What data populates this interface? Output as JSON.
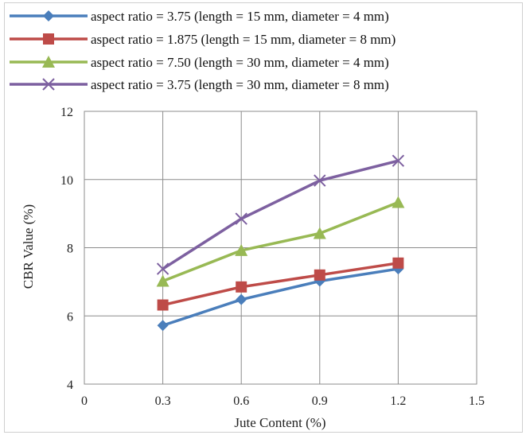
{
  "chart_data": {
    "type": "line",
    "xlabel": "Jute Content (%)",
    "ylabel": "CBR Value (%)",
    "xlim": [
      0,
      1.5
    ],
    "ylim": [
      4,
      12
    ],
    "xticks": [
      "0",
      "0.3",
      "0.6",
      "0.9",
      "1.2",
      "1.5"
    ],
    "yticks": [
      "4",
      "6",
      "8",
      "10",
      "12"
    ],
    "grid": true,
    "legend_position": "top",
    "x": [
      0.3,
      0.6,
      0.9,
      1.2
    ],
    "series": [
      {
        "name": "aspect ratio = 3.75 (length = 15 mm, diameter = 4 mm)",
        "values": [
          5.72,
          6.48,
          7.02,
          7.38
        ],
        "color": "#4a7ebb",
        "marker": "diamond"
      },
      {
        "name": "aspect ratio = 1.875 (length = 15 mm, diameter = 8 mm)",
        "values": [
          6.32,
          6.85,
          7.2,
          7.55
        ],
        "color": "#be4b48",
        "marker": "square"
      },
      {
        "name": "aspect ratio = 7.50 (length = 30 mm, diameter = 4 mm)",
        "values": [
          7.02,
          7.92,
          8.42,
          9.33
        ],
        "color": "#98b954",
        "marker": "triangle"
      },
      {
        "name": "aspect ratio = 3.75 (length = 30 mm, diameter = 8 mm)",
        "values": [
          7.38,
          8.85,
          9.97,
          10.55
        ],
        "color": "#7d60a0",
        "marker": "x"
      }
    ]
  }
}
